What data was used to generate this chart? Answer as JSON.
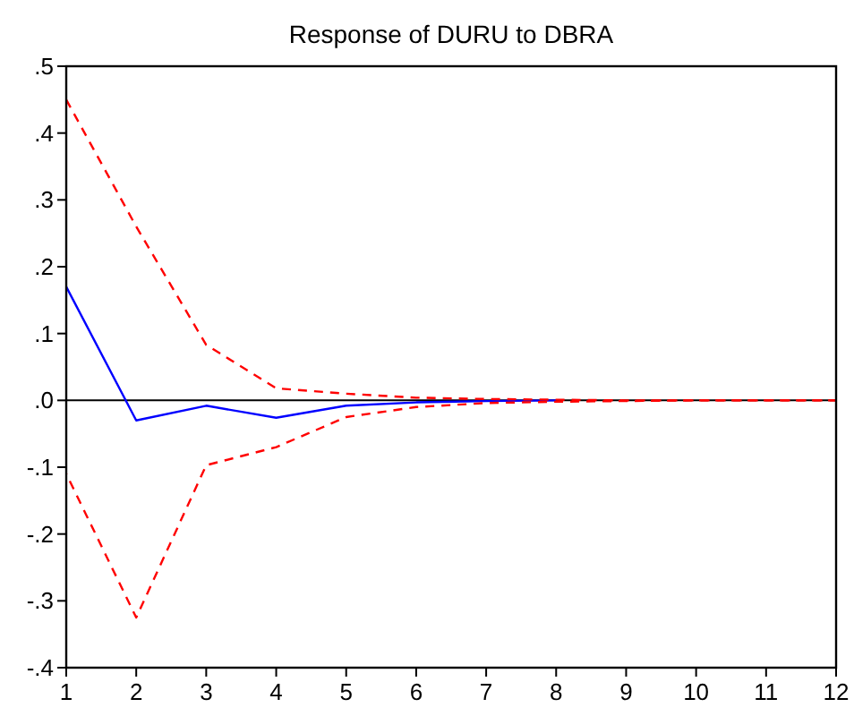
{
  "chart_data": {
    "type": "line",
    "title": "Response of DURU to DBRA",
    "x": [
      1,
      2,
      3,
      4,
      5,
      6,
      7,
      8,
      9,
      10,
      11,
      12
    ],
    "xlim": [
      1,
      12
    ],
    "xticks": [
      1,
      2,
      3,
      4,
      5,
      6,
      7,
      8,
      9,
      10,
      11,
      12
    ],
    "ylim": [
      -0.4,
      0.5
    ],
    "yticks": [
      {
        "value": -0.4,
        "label": "-.4"
      },
      {
        "value": -0.3,
        "label": "-.3"
      },
      {
        "value": -0.2,
        "label": "-.2"
      },
      {
        "value": -0.1,
        "label": "-.1"
      },
      {
        "value": 0,
        "label": ".0"
      },
      {
        "value": 0.1,
        "label": ".1"
      },
      {
        "value": 0.2,
        "label": ".2"
      },
      {
        "value": 0.3,
        "label": ".3"
      },
      {
        "value": 0.4,
        "label": ".4"
      },
      {
        "value": 0.5,
        "label": ".5"
      }
    ],
    "grid": false,
    "ref_lines": [
      {
        "axis": "y",
        "value": 0,
        "label": null,
        "color": "#000000",
        "line_style": "solid"
      }
    ],
    "series": [
      {
        "color": "#0000ff",
        "line_style": "solid",
        "values": [
          0.17,
          -0.03,
          -0.008,
          -0.026,
          -0.008,
          -0.003,
          -0.001,
          0,
          null,
          null,
          null,
          null
        ]
      },
      {
        "color": "#ff0000",
        "line_style": "dashed",
        "values": [
          0.45,
          0.26,
          0.083,
          0.018,
          0.01,
          0.004,
          0.002,
          0.001,
          0,
          0,
          0,
          0
        ]
      },
      {
        "color": "#ff0000",
        "line_style": "dashed",
        "values": [
          -0.11,
          -0.325,
          -0.097,
          -0.07,
          -0.025,
          -0.01,
          -0.004,
          -0.002,
          -0.001,
          0,
          0,
          0
        ]
      }
    ]
  }
}
